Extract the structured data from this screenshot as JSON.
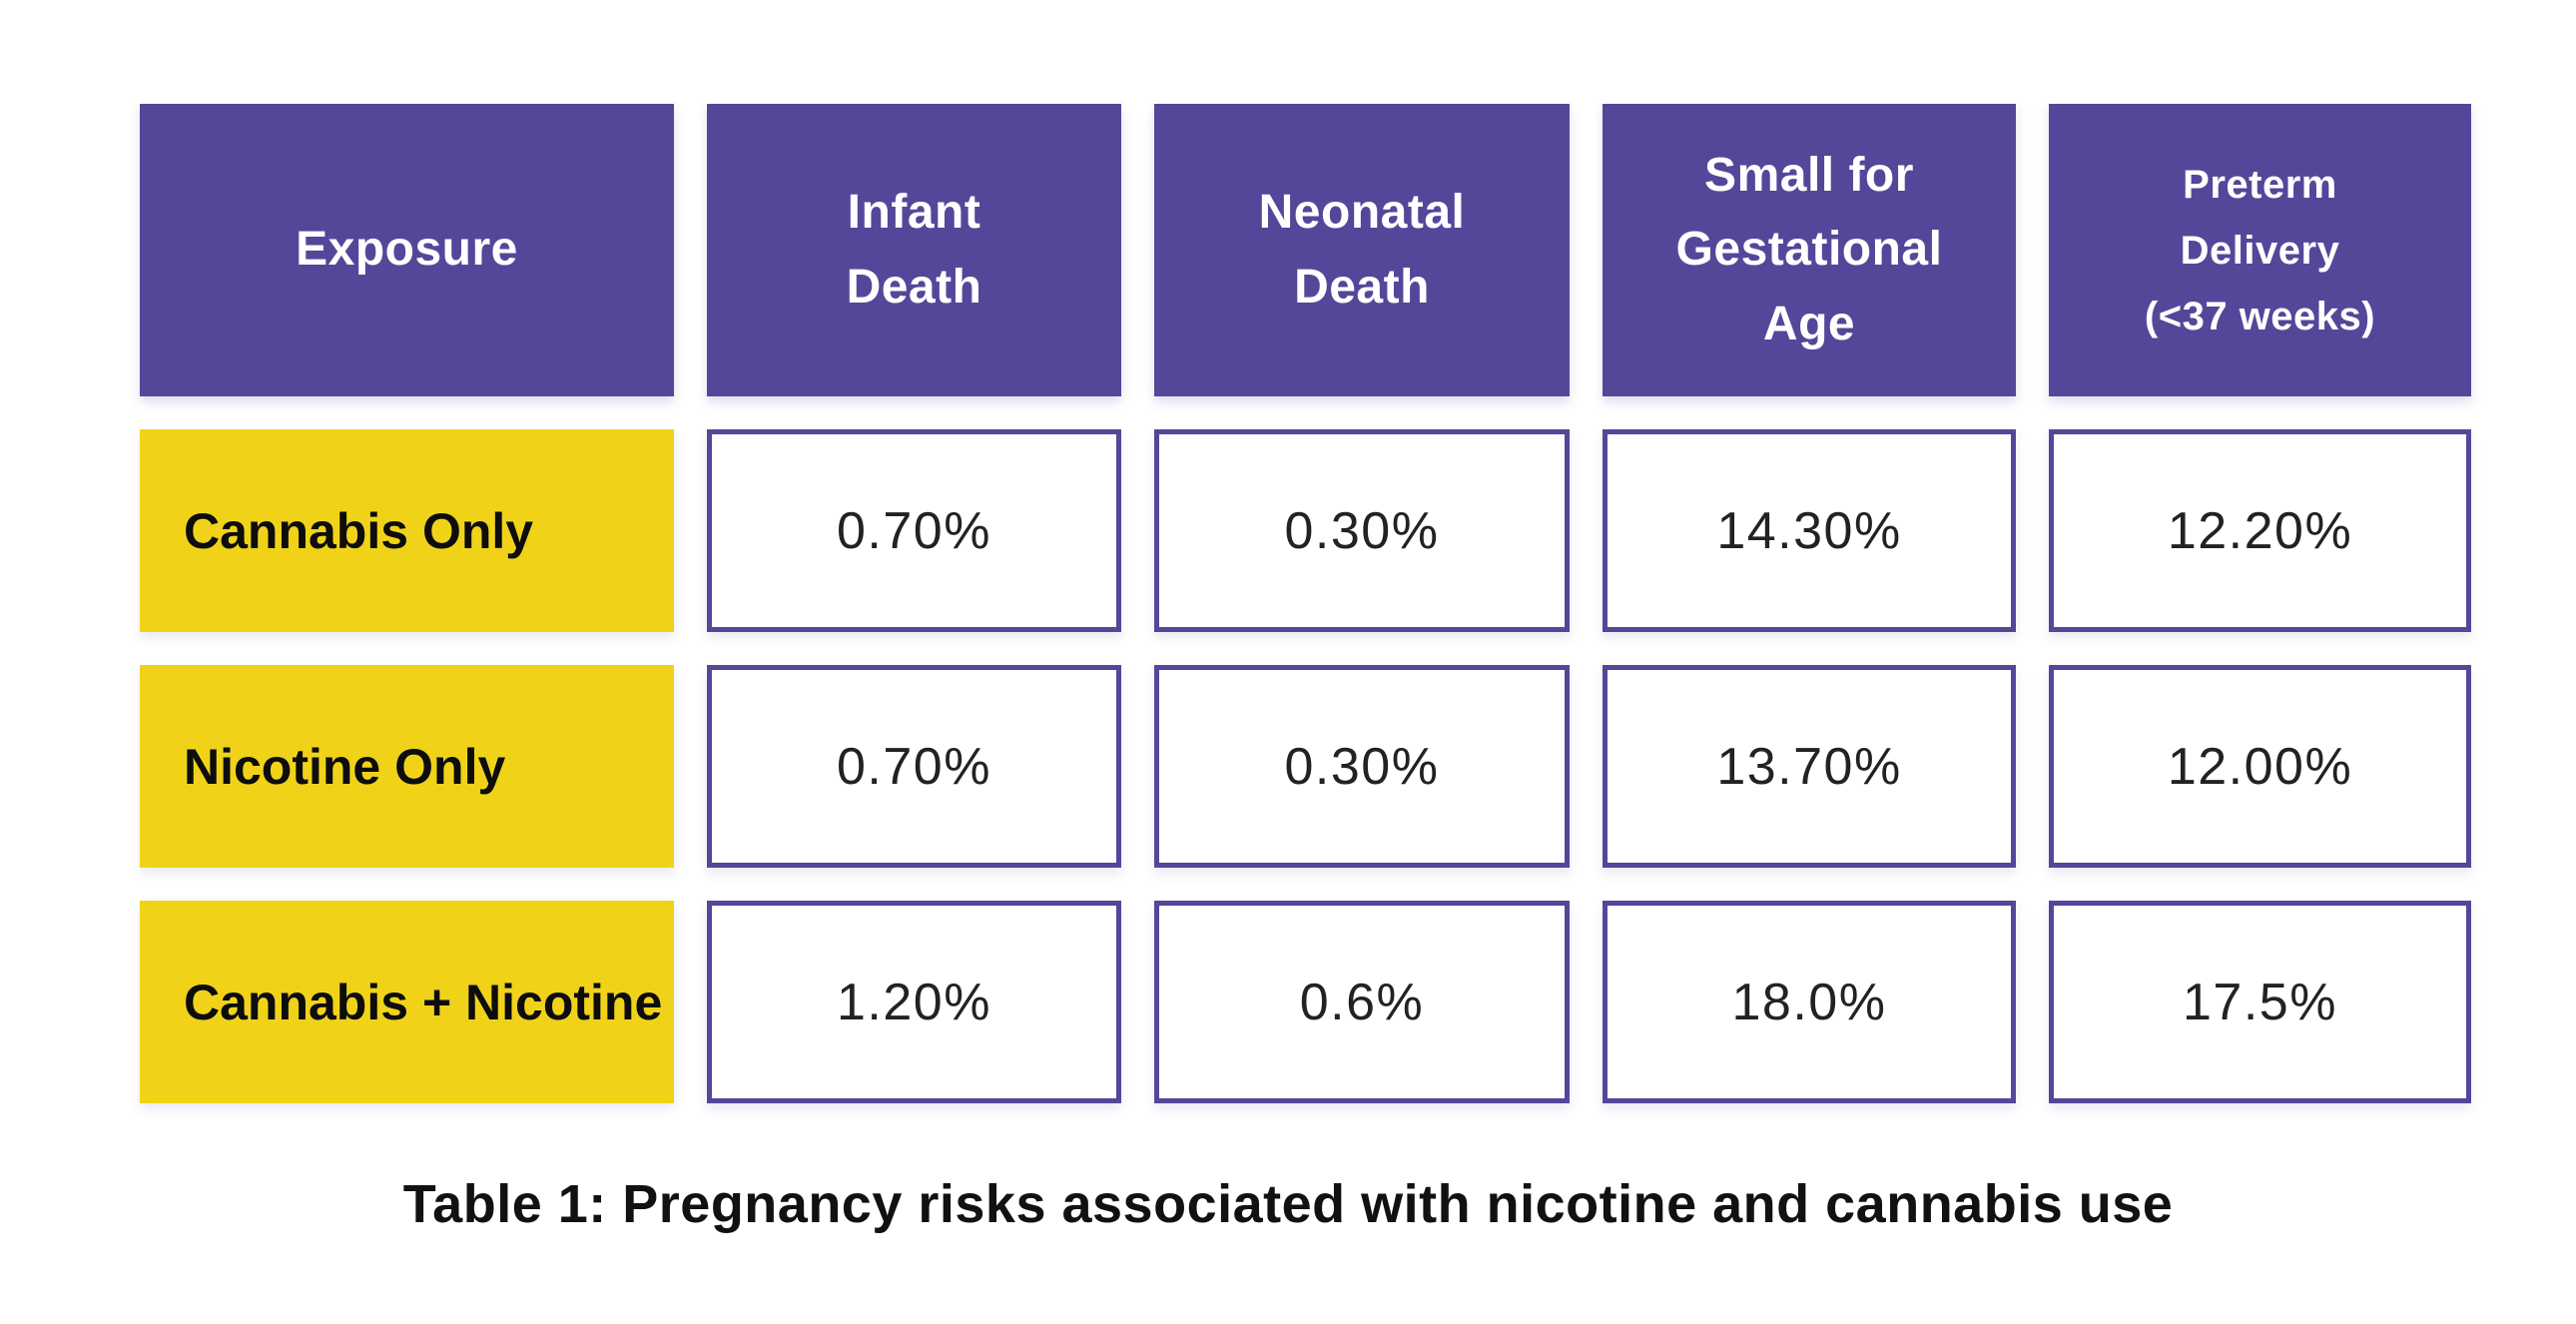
{
  "table": {
    "headers": [
      {
        "label": "Exposure"
      },
      {
        "label": "Infant\nDeath"
      },
      {
        "label": "Neonatal\nDeath"
      },
      {
        "label": "Small for\nGestational\nAge"
      },
      {
        "label": "Preterm\nDelivery\n(<37 weeks)"
      }
    ],
    "rows": [
      {
        "label": "Cannabis Only",
        "cells": [
          "0.70%",
          "0.30%",
          "14.30%",
          "12.20%"
        ]
      },
      {
        "label": "Nicotine Only",
        "cells": [
          "0.70%",
          "0.30%",
          "13.70%",
          "12.00%"
        ]
      },
      {
        "label": "Cannabis + Nicotine",
        "cells": [
          "1.20%",
          "0.6%",
          "18.0%",
          "17.5%"
        ]
      }
    ]
  },
  "caption": "Table 1: Pregnancy risks associated with nicotine and cannabis use",
  "colors": {
    "header_bg": "#54479A",
    "row_label_bg": "#F0D319",
    "cell_border": "#54479A",
    "header_text": "#FFFFFF",
    "body_text": "#222222",
    "background": "#FFFFFF"
  },
  "chart_data": {
    "type": "table",
    "title": "Table 1: Pregnancy risks associated with nicotine and cannabis use",
    "columns": [
      "Exposure",
      "Infant Death",
      "Neonatal Death",
      "Small for Gestational Age",
      "Preterm Delivery (<37 weeks)"
    ],
    "rows": [
      {
        "exposure": "Cannabis Only",
        "infant_death": "0.70%",
        "neonatal_death": "0.30%",
        "small_for_gestational_age": "14.30%",
        "preterm_delivery": "12.20%"
      },
      {
        "exposure": "Nicotine Only",
        "infant_death": "0.70%",
        "neonatal_death": "0.30%",
        "small_for_gestational_age": "13.70%",
        "preterm_delivery": "12.00%"
      },
      {
        "exposure": "Cannabis + Nicotine",
        "infant_death": "1.20%",
        "neonatal_death": "0.6%",
        "small_for_gestational_age": "18.0%",
        "preterm_delivery": "17.5%"
      }
    ]
  }
}
